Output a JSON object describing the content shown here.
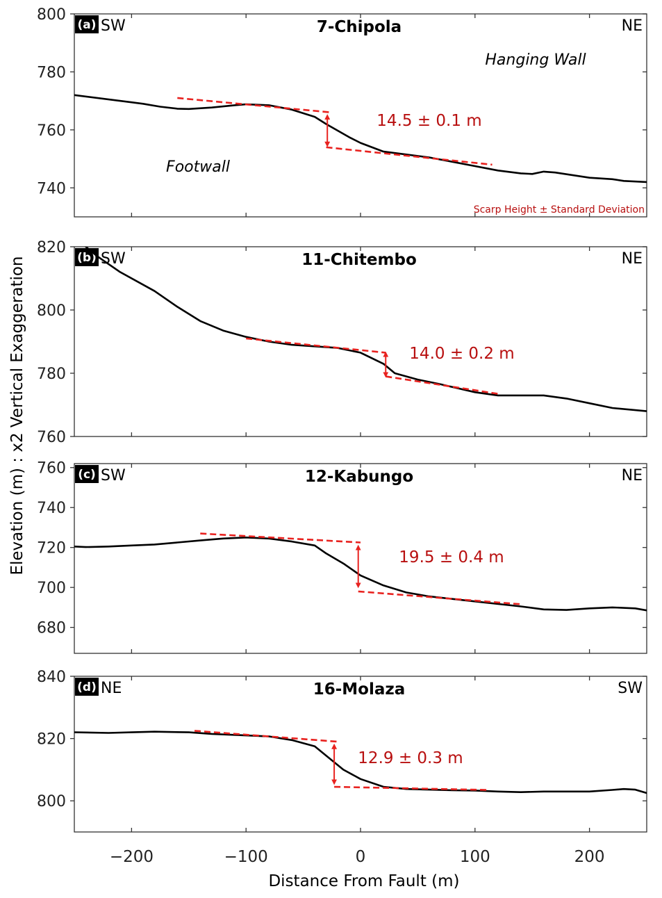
{
  "chart_data": {
    "type": "line",
    "xlabel": "Distance From Fault (m)",
    "ylabel": "Elevation (m) : x2 Vertical Exaggeration",
    "xlim": [
      -250,
      250
    ],
    "xticks": [
      -200,
      -100,
      0,
      100,
      200
    ],
    "xtick_labels": [
      "−200",
      "−100",
      "0",
      "100",
      "200"
    ],
    "legend_note": "Scarp Height ± Standard Deviation",
    "colors": {
      "profile": "#000000",
      "fit": "#e8221f",
      "label": "#b80f0f"
    },
    "panels": [
      {
        "letter": "(a)",
        "title": "7-Chipola",
        "left_dir": "SW",
        "right_dir": "NE",
        "ylim": [
          730,
          800
        ],
        "yticks": [
          740,
          760,
          780,
          800
        ],
        "scarp_label": "14.5 ± 0.1 m",
        "hanging_wall_label": "Hanging Wall",
        "footwall_label": "Footwall",
        "profile": [
          [
            -250,
            772
          ],
          [
            -200,
            769.5
          ],
          [
            -190,
            769
          ],
          [
            -175,
            768
          ],
          [
            -160,
            767.3
          ],
          [
            -150,
            767.2
          ],
          [
            -130,
            767.7
          ],
          [
            -110,
            768.5
          ],
          [
            -100,
            768.8
          ],
          [
            -80,
            768.5
          ],
          [
            -60,
            767
          ],
          [
            -40,
            764.5
          ],
          [
            -30,
            762
          ],
          [
            -10,
            757.5
          ],
          [
            0,
            755.5
          ],
          [
            20,
            752.5
          ],
          [
            40,
            751.5
          ],
          [
            60,
            750.5
          ],
          [
            80,
            749
          ],
          [
            100,
            747.5
          ],
          [
            120,
            746
          ],
          [
            140,
            745
          ],
          [
            150,
            744.8
          ],
          [
            160,
            745.6
          ],
          [
            170,
            745.3
          ],
          [
            200,
            743.5
          ],
          [
            220,
            743
          ],
          [
            230,
            742.4
          ],
          [
            250,
            742
          ]
        ],
        "upper_fit": [
          [
            -160,
            771
          ],
          [
            -25,
            766
          ]
        ],
        "lower_fit": [
          [
            -30,
            754
          ],
          [
            115,
            748
          ]
        ],
        "arrow": {
          "x": -29,
          "y_top": 764.5,
          "y_bottom": 755.0
        }
      },
      {
        "letter": "(b)",
        "title": "11-Chitembo",
        "left_dir": "SW",
        "right_dir": "NE",
        "ylim": [
          760,
          820
        ],
        "yticks": [
          760,
          780,
          800,
          820
        ],
        "scarp_label": "14.0 ± 0.2 m",
        "profile": [
          [
            -240,
            820
          ],
          [
            -230,
            817
          ],
          [
            -210,
            812
          ],
          [
            -180,
            806
          ],
          [
            -160,
            801
          ],
          [
            -140,
            796.5
          ],
          [
            -120,
            793.5
          ],
          [
            -100,
            791.5
          ],
          [
            -80,
            790
          ],
          [
            -60,
            789
          ],
          [
            -40,
            788.5
          ],
          [
            -20,
            788
          ],
          [
            0,
            786.5
          ],
          [
            20,
            783
          ],
          [
            30,
            780
          ],
          [
            50,
            778
          ],
          [
            70,
            776.5
          ],
          [
            100,
            774
          ],
          [
            120,
            773
          ],
          [
            140,
            773
          ],
          [
            160,
            773
          ],
          [
            180,
            772
          ],
          [
            200,
            770.5
          ],
          [
            220,
            769
          ],
          [
            250,
            768
          ]
        ],
        "upper_fit": [
          [
            -100,
            791
          ],
          [
            22,
            786.5
          ]
        ],
        "lower_fit": [
          [
            22,
            779
          ],
          [
            120,
            773.5
          ]
        ],
        "arrow": {
          "x": 22,
          "y_top": 786.0,
          "y_bottom": 779.5
        }
      },
      {
        "letter": "(c)",
        "title": "12-Kabungo",
        "left_dir": "SW",
        "right_dir": "NE",
        "ylim": [
          667,
          762
        ],
        "yticks": [
          680,
          700,
          720,
          740,
          760
        ],
        "scarp_label": "19.5 ± 0.4 m",
        "profile": [
          [
            -250,
            720.5
          ],
          [
            -240,
            720.2
          ],
          [
            -220,
            720.5
          ],
          [
            -200,
            721
          ],
          [
            -180,
            721.5
          ],
          [
            -160,
            722.5
          ],
          [
            -140,
            723.5
          ],
          [
            -120,
            724.5
          ],
          [
            -100,
            725
          ],
          [
            -80,
            724.5
          ],
          [
            -60,
            723
          ],
          [
            -40,
            721
          ],
          [
            -30,
            717
          ],
          [
            -15,
            712
          ],
          [
            0,
            706
          ],
          [
            20,
            701
          ],
          [
            40,
            697.5
          ],
          [
            60,
            695.5
          ],
          [
            100,
            693
          ],
          [
            140,
            690.5
          ],
          [
            160,
            689
          ],
          [
            180,
            688.7
          ],
          [
            200,
            689.5
          ],
          [
            220,
            690
          ],
          [
            240,
            689.5
          ],
          [
            250,
            688.5
          ]
        ],
        "upper_fit": [
          [
            -140,
            727
          ],
          [
            0,
            722.5
          ]
        ],
        "lower_fit": [
          [
            -2,
            698
          ],
          [
            142,
            691.5
          ]
        ],
        "arrow": {
          "x": -2,
          "y_top": 720.0,
          "y_bottom": 701.0
        }
      },
      {
        "letter": "(d)",
        "title": "16-Molaza",
        "left_dir": "NE",
        "right_dir": "SW",
        "ylim": [
          790,
          840
        ],
        "yticks": [
          800,
          820,
          840
        ],
        "scarp_label": "12.9 ± 0.3 m",
        "profile": [
          [
            -250,
            822
          ],
          [
            -220,
            821.8
          ],
          [
            -200,
            822
          ],
          [
            -180,
            822.2
          ],
          [
            -150,
            822
          ],
          [
            -130,
            821.5
          ],
          [
            -100,
            821
          ],
          [
            -80,
            820.7
          ],
          [
            -60,
            819.5
          ],
          [
            -40,
            817.5
          ],
          [
            -30,
            814.5
          ],
          [
            -15,
            810
          ],
          [
            0,
            807
          ],
          [
            20,
            804.5
          ],
          [
            40,
            803.8
          ],
          [
            60,
            803.6
          ],
          [
            80,
            803.4
          ],
          [
            100,
            803.3
          ],
          [
            120,
            803
          ],
          [
            140,
            802.8
          ],
          [
            160,
            803
          ],
          [
            180,
            803
          ],
          [
            200,
            803
          ],
          [
            220,
            803.5
          ],
          [
            230,
            803.8
          ],
          [
            240,
            803.6
          ],
          [
            250,
            802.5
          ]
        ],
        "upper_fit": [
          [
            -145,
            822.5
          ],
          [
            -20,
            819
          ]
        ],
        "lower_fit": [
          [
            -23,
            804.5
          ],
          [
            110,
            803.5
          ]
        ],
        "arrow": {
          "x": -23,
          "y_top": 817.5,
          "y_bottom": 806.0
        }
      }
    ]
  }
}
